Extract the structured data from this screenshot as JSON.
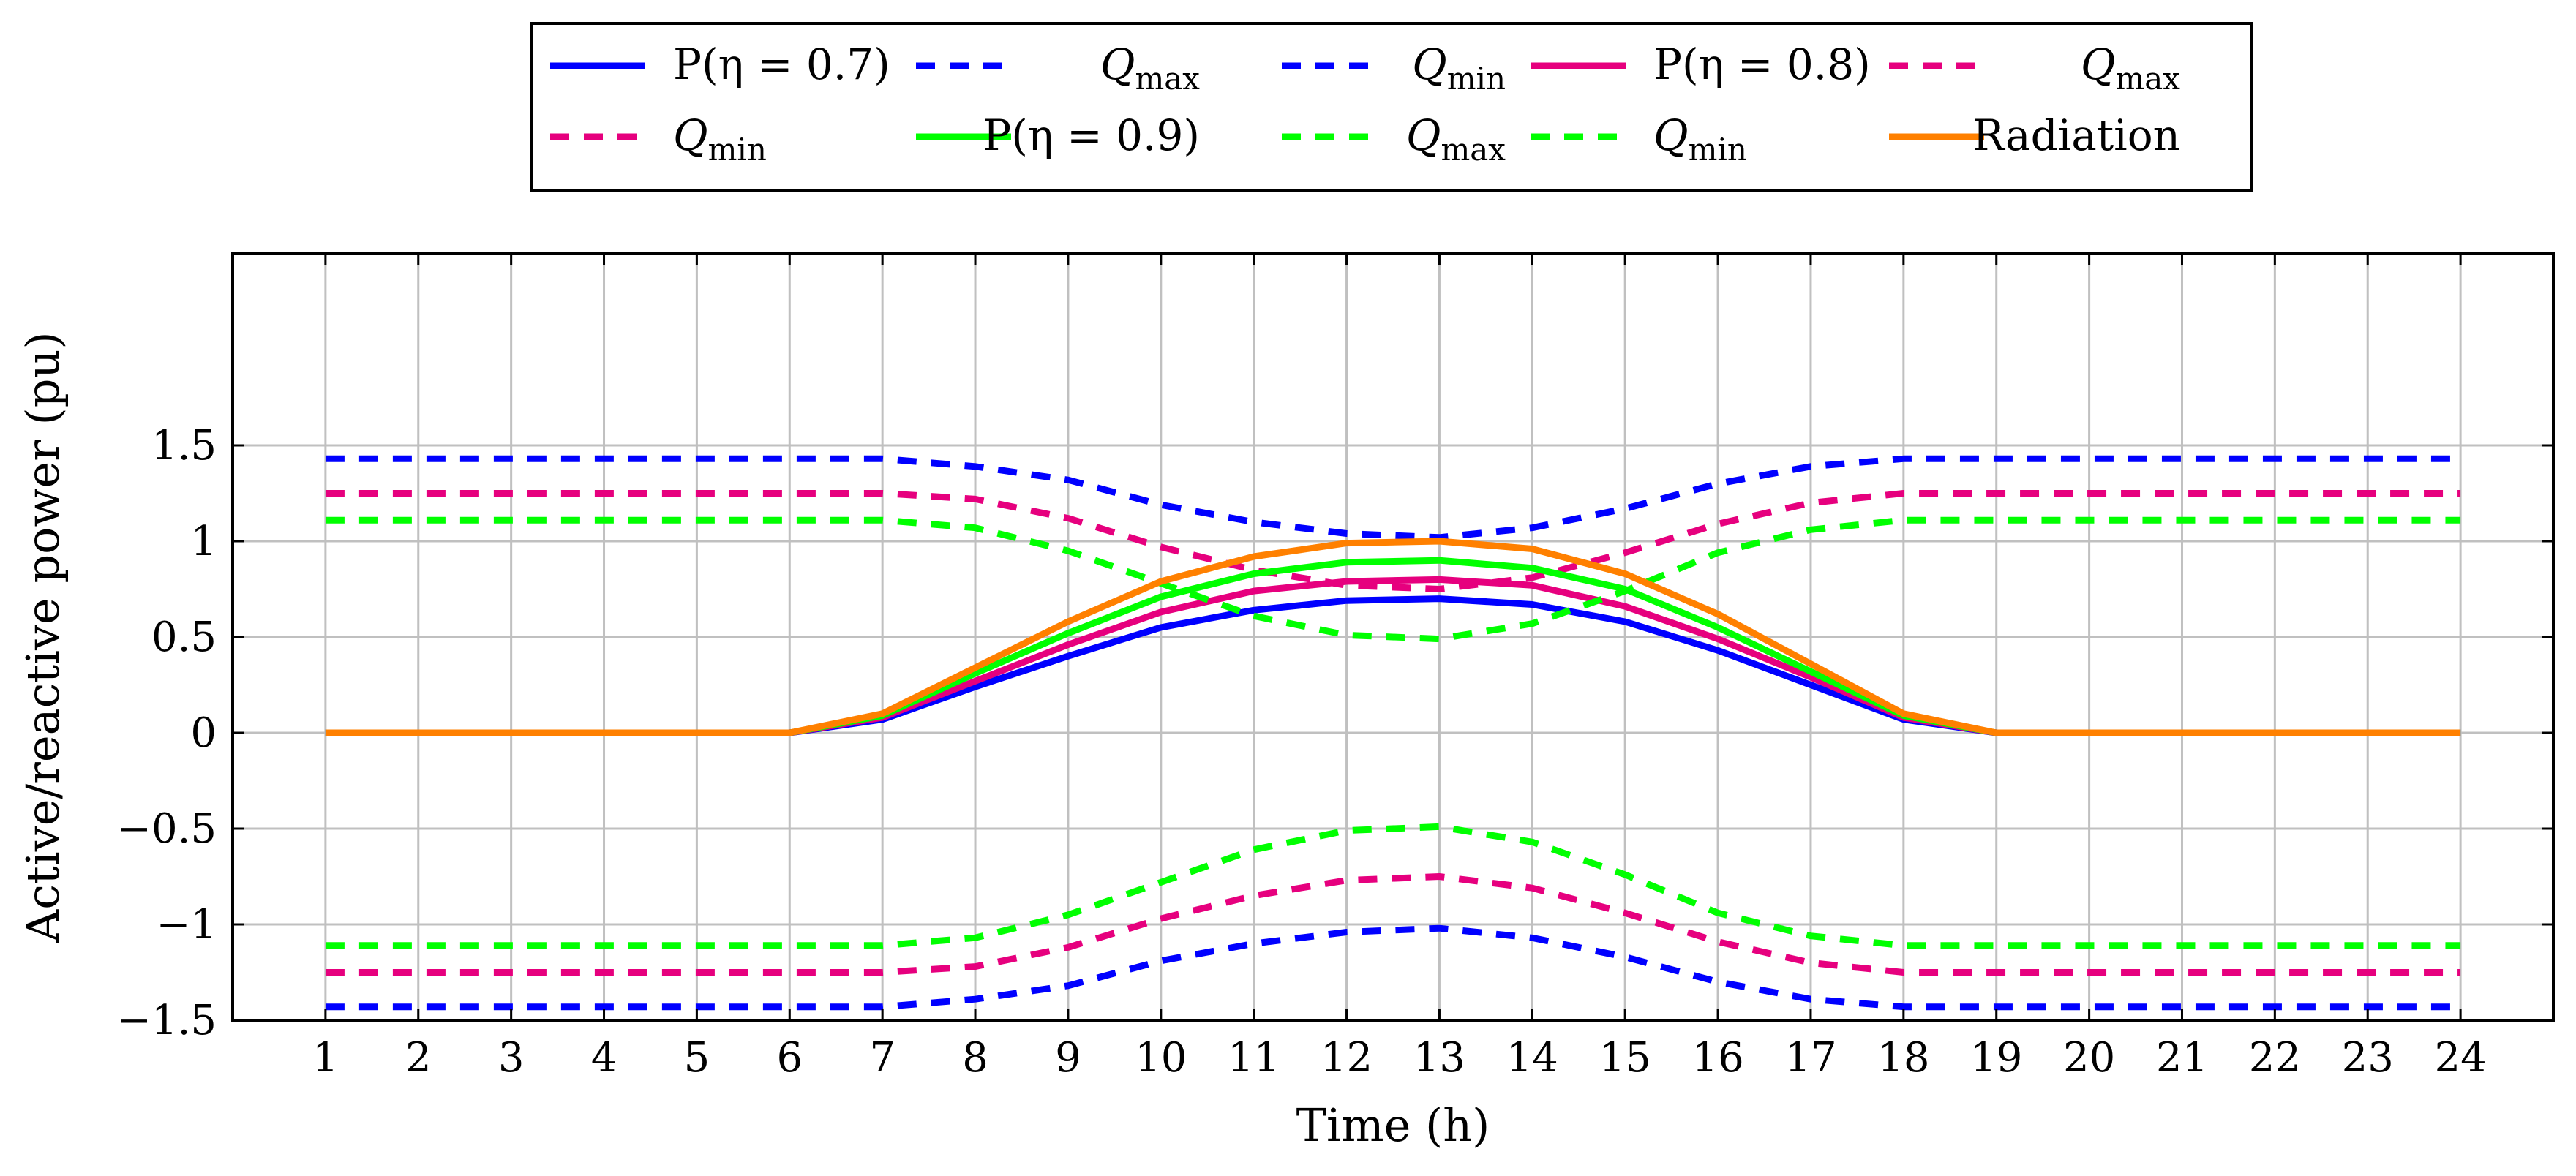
{
  "chart_data": {
    "type": "line",
    "title": "",
    "xlabel": "Time (h)",
    "ylabel": "Active/reactive power (pu)",
    "xlim": [
      0,
      25
    ],
    "ylim": [
      -1.5,
      2.5
    ],
    "grid": true,
    "legend_position": "top-center",
    "x": [
      1,
      2,
      3,
      4,
      5,
      6,
      7,
      8,
      9,
      10,
      11,
      12,
      13,
      14,
      15,
      16,
      17,
      18,
      19,
      20,
      21,
      22,
      23,
      24
    ],
    "x_tick_labels": [
      "1",
      "2",
      "3",
      "4",
      "5",
      "6",
      "7",
      "8",
      "9",
      "10",
      "11",
      "12",
      "13",
      "14",
      "15",
      "16",
      "17",
      "18",
      "19",
      "20",
      "21",
      "22",
      "23",
      "24"
    ],
    "y_ticks": [
      -1.5,
      -1,
      -0.5,
      0,
      0.5,
      1,
      1.5
    ],
    "y_tick_labels": [
      "−1.5",
      "−1",
      "−0.5",
      "0",
      "0.5",
      "1",
      "1.5"
    ],
    "series": [
      {
        "name": "P(η = 0.7)",
        "legend_label": "P(η = 0.7)",
        "color": "#0000ff",
        "dash": "solid",
        "values": [
          0,
          0,
          0,
          0,
          0,
          0,
          0.07,
          0.24,
          0.4,
          0.55,
          0.64,
          0.69,
          0.7,
          0.67,
          0.58,
          0.43,
          0.25,
          0.07,
          0,
          0,
          0,
          0,
          0,
          0
        ]
      },
      {
        "name": "Qmax (η = 0.7)",
        "legend_label": "Q",
        "legend_sub": "max",
        "color": "#0000ff",
        "dash": "dashed",
        "values": [
          1.43,
          1.43,
          1.43,
          1.43,
          1.43,
          1.43,
          1.43,
          1.39,
          1.32,
          1.19,
          1.1,
          1.04,
          1.02,
          1.07,
          1.17,
          1.3,
          1.39,
          1.43,
          1.43,
          1.43,
          1.43,
          1.43,
          1.43,
          1.43
        ]
      },
      {
        "name": "Qmin (η = 0.7)",
        "legend_label": "Q",
        "legend_sub": "min",
        "color": "#0000ff",
        "dash": "dashed",
        "values": [
          -1.43,
          -1.43,
          -1.43,
          -1.43,
          -1.43,
          -1.43,
          -1.43,
          -1.39,
          -1.32,
          -1.19,
          -1.1,
          -1.04,
          -1.02,
          -1.07,
          -1.17,
          -1.3,
          -1.39,
          -1.43,
          -1.43,
          -1.43,
          -1.43,
          -1.43,
          -1.43,
          -1.43
        ]
      },
      {
        "name": "P(η = 0.8)",
        "legend_label": "P(η = 0.8)",
        "color": "#e6007e",
        "dash": "solid",
        "values": [
          0,
          0,
          0,
          0,
          0,
          0,
          0.08,
          0.27,
          0.46,
          0.63,
          0.74,
          0.79,
          0.8,
          0.77,
          0.66,
          0.49,
          0.29,
          0.08,
          0,
          0,
          0,
          0,
          0,
          0
        ]
      },
      {
        "name": "Qmax (η = 0.8)",
        "legend_label": "Q",
        "legend_sub": "max",
        "color": "#e6007e",
        "dash": "dashed",
        "values": [
          1.25,
          1.25,
          1.25,
          1.25,
          1.25,
          1.25,
          1.25,
          1.22,
          1.12,
          0.97,
          0.85,
          0.77,
          0.75,
          0.81,
          0.94,
          1.09,
          1.2,
          1.25,
          1.25,
          1.25,
          1.25,
          1.25,
          1.25,
          1.25
        ]
      },
      {
        "name": "Qmin (η = 0.8)",
        "legend_label": "Q",
        "legend_sub": "min",
        "color": "#e6007e",
        "dash": "dashed",
        "values": [
          -1.25,
          -1.25,
          -1.25,
          -1.25,
          -1.25,
          -1.25,
          -1.25,
          -1.22,
          -1.12,
          -0.97,
          -0.85,
          -0.77,
          -0.75,
          -0.81,
          -0.94,
          -1.09,
          -1.2,
          -1.25,
          -1.25,
          -1.25,
          -1.25,
          -1.25,
          -1.25,
          -1.25
        ]
      },
      {
        "name": "P(η = 0.9)",
        "legend_label": "P(η = 0.9)",
        "color": "#00ff00",
        "dash": "solid",
        "values": [
          0,
          0,
          0,
          0,
          0,
          0,
          0.09,
          0.31,
          0.52,
          0.71,
          0.83,
          0.89,
          0.9,
          0.86,
          0.75,
          0.55,
          0.32,
          0.09,
          0,
          0,
          0,
          0,
          0,
          0
        ]
      },
      {
        "name": "Qmax (η = 0.9)",
        "legend_label": "Q",
        "legend_sub": "max",
        "color": "#00ff00",
        "dash": "dashed",
        "values": [
          1.11,
          1.11,
          1.11,
          1.11,
          1.11,
          1.11,
          1.11,
          1.07,
          0.95,
          0.78,
          0.61,
          0.51,
          0.49,
          0.57,
          0.74,
          0.94,
          1.06,
          1.11,
          1.11,
          1.11,
          1.11,
          1.11,
          1.11,
          1.11
        ]
      },
      {
        "name": "Qmin (η = 0.9)",
        "legend_label": "Q",
        "legend_sub": "min",
        "color": "#00ff00",
        "dash": "dashed",
        "values": [
          -1.11,
          -1.11,
          -1.11,
          -1.11,
          -1.11,
          -1.11,
          -1.11,
          -1.07,
          -0.95,
          -0.78,
          -0.61,
          -0.51,
          -0.49,
          -0.57,
          -0.74,
          -0.94,
          -1.06,
          -1.11,
          -1.11,
          -1.11,
          -1.11,
          -1.11,
          -1.11,
          -1.11
        ]
      },
      {
        "name": "Radiation",
        "legend_label": "Radiation",
        "color": "#ff8000",
        "dash": "solid",
        "values": [
          0,
          0,
          0,
          0,
          0,
          0,
          0.1,
          0.34,
          0.58,
          0.79,
          0.92,
          0.99,
          1.0,
          0.96,
          0.83,
          0.62,
          0.36,
          0.1,
          0,
          0,
          0,
          0,
          0,
          0
        ]
      }
    ]
  }
}
